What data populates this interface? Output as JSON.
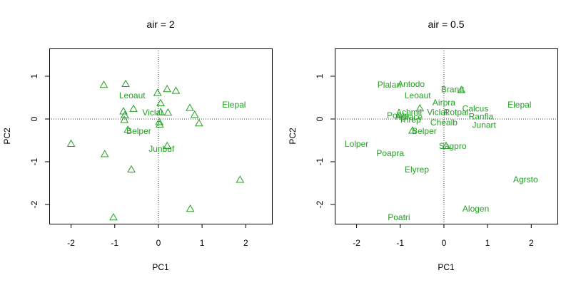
{
  "chart_data": [
    {
      "type": "scatter",
      "title": "air = 2",
      "xlabel": "PC1",
      "ylabel": "PC2",
      "xlim": [
        -2.5,
        2.6
      ],
      "ylim": [
        -2.45,
        1.65
      ],
      "xticks": [
        -2,
        -1,
        0,
        1,
        2
      ],
      "yticks": [
        -2,
        -1,
        0,
        1
      ],
      "reference_lines": {
        "x": 0,
        "y": 0,
        "style": "dotted"
      },
      "marker": "triangle-open",
      "color": "#22a022",
      "points": [
        {
          "x": -1.25,
          "y": 0.8
        },
        {
          "x": -0.75,
          "y": 0.82
        },
        {
          "x": -0.02,
          "y": 0.61
        },
        {
          "x": 0.2,
          "y": 0.7
        },
        {
          "x": 0.4,
          "y": 0.66
        },
        {
          "x": 0.05,
          "y": 0.37
        },
        {
          "x": 0.72,
          "y": 0.26
        },
        {
          "x": 0.83,
          "y": 0.1
        },
        {
          "x": 0.93,
          "y": -0.1
        },
        {
          "x": -0.8,
          "y": 0.18
        },
        {
          "x": -0.57,
          "y": 0.24
        },
        {
          "x": -0.77,
          "y": 0.09
        },
        {
          "x": -0.78,
          "y": -0.02
        },
        {
          "x": 0.05,
          "y": 0.16
        },
        {
          "x": 0.22,
          "y": 0.15
        },
        {
          "x": 0.02,
          "y": -0.07
        },
        {
          "x": 0.03,
          "y": -0.13
        },
        {
          "x": -0.7,
          "y": -0.25
        },
        {
          "x": 0.2,
          "y": -0.63
        },
        {
          "x": -2.0,
          "y": -0.58
        },
        {
          "x": -1.23,
          "y": -0.82
        },
        {
          "x": -0.62,
          "y": -1.18
        },
        {
          "x": 1.87,
          "y": -1.42
        },
        {
          "x": 0.73,
          "y": -2.1
        },
        {
          "x": -1.03,
          "y": -2.3
        }
      ],
      "labels": [
        {
          "text": "Leoaut",
          "x": -0.6,
          "y": 0.55
        },
        {
          "text": "Viclat",
          "x": -0.13,
          "y": 0.15
        },
        {
          "text": "Elepal",
          "x": 1.73,
          "y": 0.33
        },
        {
          "text": "Belper",
          "x": -0.45,
          "y": -0.28
        },
        {
          "text": "Junbuf",
          "x": 0.07,
          "y": -0.7
        }
      ]
    },
    {
      "type": "scatter",
      "title": "air = 0.5",
      "xlabel": "PC1",
      "ylabel": "PC2",
      "xlim": [
        -2.5,
        2.6
      ],
      "ylim": [
        -2.45,
        1.65
      ],
      "xticks": [
        -2,
        -1,
        0,
        1,
        2
      ],
      "yticks": [
        -2,
        -1,
        0,
        1
      ],
      "reference_lines": {
        "x": 0,
        "y": 0,
        "style": "dotted"
      },
      "marker": "triangle-open",
      "color": "#22a022",
      "points": [
        {
          "x": 0.4,
          "y": 0.68
        },
        {
          "x": -0.55,
          "y": 0.25
        },
        {
          "x": -0.72,
          "y": -0.27
        },
        {
          "x": 0.05,
          "y": -0.63
        }
      ],
      "labels": [
        {
          "text": "Plalan",
          "x": -1.25,
          "y": 0.8
        },
        {
          "text": "Antodo",
          "x": -0.75,
          "y": 0.82
        },
        {
          "text": "Brarut",
          "x": 0.2,
          "y": 0.69
        },
        {
          "text": "Leoaut",
          "x": -0.6,
          "y": 0.55
        },
        {
          "text": "Airpra",
          "x": 0.0,
          "y": 0.38
        },
        {
          "text": "Calcus",
          "x": 0.72,
          "y": 0.24
        },
        {
          "text": "Elepal",
          "x": 1.73,
          "y": 0.33
        },
        {
          "text": "Achmil",
          "x": -0.8,
          "y": 0.16
        },
        {
          "text": "Viclat",
          "x": -0.15,
          "y": 0.16
        },
        {
          "text": "Rotpal",
          "x": 0.28,
          "y": 0.16
        },
        {
          "text": "Ranfla",
          "x": 0.85,
          "y": 0.06
        },
        {
          "text": "Poatri",
          "x": -1.05,
          "y": 0.08
        },
        {
          "text": "Agrace",
          "x": -0.8,
          "y": 0.05
        },
        {
          "text": "Trirep",
          "x": -0.78,
          "y": -0.02
        },
        {
          "text": "Chealb",
          "x": 0.0,
          "y": -0.08
        },
        {
          "text": "Junart",
          "x": 0.92,
          "y": -0.14
        },
        {
          "text": "Belper",
          "x": -0.45,
          "y": -0.28
        },
        {
          "text": "Sagpro",
          "x": 0.2,
          "y": -0.63
        },
        {
          "text": "Lolper",
          "x": -2.0,
          "y": -0.58
        },
        {
          "text": "Poapra",
          "x": -1.23,
          "y": -0.8
        },
        {
          "text": "Elyrep",
          "x": -0.62,
          "y": -1.18
        },
        {
          "text": "Agrsto",
          "x": 1.87,
          "y": -1.42
        },
        {
          "text": "Alogen",
          "x": 0.73,
          "y": -2.1
        },
        {
          "text": "Poatri",
          "x": -1.03,
          "y": -2.3
        }
      ]
    }
  ]
}
